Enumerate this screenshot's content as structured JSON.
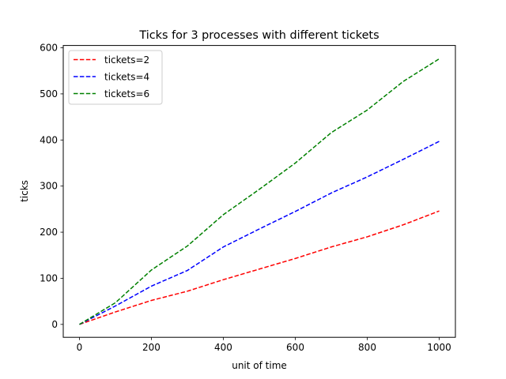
{
  "chart_data": {
    "type": "line",
    "title": "Ticks for 3 processes with different tickets",
    "xlabel": "unit of time",
    "ylabel": "ticks",
    "xlim": [
      -45,
      1045
    ],
    "ylim": [
      -28,
      605
    ],
    "xticks": [
      0,
      200,
      400,
      600,
      800,
      1000
    ],
    "yticks": [
      0,
      100,
      200,
      300,
      400,
      500,
      600
    ],
    "grid": false,
    "legend_position": "top-left",
    "line_style": "dashed",
    "x": [
      0,
      100,
      200,
      300,
      400,
      500,
      600,
      700,
      800,
      900,
      1000
    ],
    "series": [
      {
        "name": "tickets=2",
        "color": "#ff0000",
        "values": [
          0,
          27,
          52,
          72,
          97,
          120,
          143,
          168,
          190,
          216,
          246
        ]
      },
      {
        "name": "tickets=4",
        "color": "#0000ff",
        "values": [
          0,
          40,
          83,
          117,
          168,
          207,
          245,
          285,
          320,
          358,
          397
        ]
      },
      {
        "name": "tickets=6",
        "color": "#008000",
        "values": [
          0,
          47,
          118,
          170,
          238,
          293,
          350,
          416,
          465,
          527,
          576
        ]
      }
    ]
  }
}
